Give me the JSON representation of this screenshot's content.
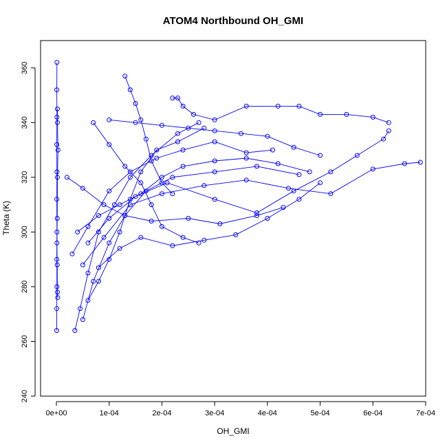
{
  "chart_data": {
    "type": "line",
    "title": "ATOM4 Northbound OH_GMI",
    "xlabel": "OH_GMI",
    "ylabel": "Theta (K)",
    "xlim": [
      -3e-05,
      0.0007
    ],
    "ylim": [
      240,
      370
    ],
    "x_ticks": [
      {
        "value": 0,
        "label": "0e+00"
      },
      {
        "value": 0.0001,
        "label": "1e-04"
      },
      {
        "value": 0.0002,
        "label": "2e-04"
      },
      {
        "value": 0.0003,
        "label": "3e-04"
      },
      {
        "value": 0.0004,
        "label": "4e-04"
      },
      {
        "value": 0.0005,
        "label": "5e-04"
      },
      {
        "value": 0.0006,
        "label": "6e-04"
      },
      {
        "value": 0.0007,
        "label": "7e-04"
      }
    ],
    "y_ticks": [
      {
        "value": 240,
        "label": "240"
      },
      {
        "value": 260,
        "label": "260"
      },
      {
        "value": 280,
        "label": "280"
      },
      {
        "value": 300,
        "label": "300"
      },
      {
        "value": 320,
        "label": "320"
      },
      {
        "value": 340,
        "label": "340"
      },
      {
        "value": 360,
        "label": "360"
      }
    ],
    "grid": false,
    "color": "#0000ff",
    "marker": "open-circle",
    "series": [
      {
        "points": [
          [
            5e-07,
            264
          ],
          [
            8e-07,
            272
          ],
          [
            1e-06,
            280
          ],
          [
            8e-07,
            290
          ],
          [
            1e-06,
            300
          ],
          [
            8e-07,
            312
          ],
          [
            1e-06,
            322
          ],
          [
            8e-07,
            332
          ],
          [
            1e-06,
            342
          ],
          [
            8e-07,
            352
          ],
          [
            1e-06,
            362
          ]
        ]
      },
      {
        "points": [
          [
            2e-06,
            345
          ],
          [
            2e-06,
            340
          ],
          [
            3e-06,
            330
          ],
          [
            2e-06,
            320
          ],
          [
            1.5e-06,
            305
          ],
          [
            1e-06,
            296
          ],
          [
            1.5e-06,
            288
          ],
          [
            2e-06,
            278
          ],
          [
            2.5e-06,
            276
          ]
        ]
      },
      {
        "points": [
          [
            3.5e-05,
            264
          ],
          [
            4.5e-05,
            272
          ],
          [
            6e-05,
            285
          ],
          [
            8e-05,
            300
          ],
          [
            0.00011,
            310
          ],
          [
            0.00014,
            320
          ],
          [
            0.00018,
            328
          ],
          [
            0.00023,
            336
          ],
          [
            0.00027,
            340
          ]
        ]
      },
      {
        "points": [
          [
            5e-05,
            268
          ],
          [
            7e-05,
            282
          ],
          [
            0.0001,
            296
          ],
          [
            0.00013,
            306
          ],
          [
            0.00017,
            315
          ],
          [
            0.00022,
            320
          ],
          [
            0.0003,
            322
          ],
          [
            0.00038,
            324
          ],
          [
            0.00046,
            321
          ]
        ]
      },
      {
        "points": [
          [
            5e-05,
            288
          ],
          [
            9e-05,
            298
          ],
          [
            0.00014,
            310
          ],
          [
            0.0002,
            314
          ],
          [
            0.00028,
            317
          ],
          [
            0.00036,
            319
          ],
          [
            0.00044,
            316
          ],
          [
            0.00052,
            314
          ],
          [
            0.0006,
            323
          ],
          [
            0.00066,
            325
          ],
          [
            0.00069,
            325.5
          ]
        ]
      },
      {
        "points": [
          [
            6e-05,
            296
          ],
          [
            0.0001,
            305
          ],
          [
            0.00015,
            313
          ],
          [
            0.00021,
            318
          ],
          [
            0.0003,
            312
          ],
          [
            0.00038,
            307
          ],
          [
            0.00045,
            315
          ],
          [
            0.00052,
            322
          ],
          [
            0.00057,
            328
          ],
          [
            0.00062,
            334
          ],
          [
            0.00063,
            337
          ]
        ]
      },
      {
        "points": [
          [
            0.0001,
            341
          ],
          [
            0.00015,
            340
          ],
          [
            0.0002,
            339
          ],
          [
            0.00025,
            338
          ],
          [
            0.0003,
            337
          ],
          [
            0.00035,
            336
          ],
          [
            0.0004,
            335
          ],
          [
            0.00045,
            331
          ],
          [
            0.0005,
            328
          ]
        ]
      },
      {
        "points": [
          [
            0.00013,
            357
          ],
          [
            0.00014,
            352
          ],
          [
            0.00015,
            347
          ],
          [
            0.00016,
            341
          ],
          [
            0.00017,
            334
          ],
          [
            0.00018,
            326
          ],
          [
            0.0002,
            318
          ],
          [
            0.00022,
            314
          ]
        ]
      },
      {
        "points": [
          [
            0.00022,
            349
          ],
          [
            0.00023,
            349
          ],
          [
            0.00024,
            346
          ],
          [
            0.00026,
            343
          ],
          [
            0.0003,
            341
          ],
          [
            0.00036,
            346
          ],
          [
            0.00042,
            346
          ],
          [
            0.00046,
            346
          ],
          [
            0.0005,
            343
          ],
          [
            0.00055,
            343
          ],
          [
            0.0006,
            342
          ],
          [
            0.00063,
            340
          ]
        ]
      },
      {
        "points": [
          [
            8e-05,
            287
          ],
          [
            0.00012,
            294
          ],
          [
            0.00016,
            298
          ],
          [
            0.00022,
            295
          ],
          [
            0.00028,
            297
          ],
          [
            0.00034,
            299
          ],
          [
            0.0004,
            305
          ],
          [
            0.00046,
            312
          ],
          [
            0.0005,
            318
          ]
        ]
      },
      {
        "points": [
          [
            4e-05,
            300
          ],
          [
            8e-05,
            306
          ],
          [
            0.00012,
            310
          ],
          [
            0.00016,
            314
          ],
          [
            0.0002,
            320
          ],
          [
            0.00024,
            324
          ],
          [
            0.0003,
            326
          ],
          [
            0.00036,
            327
          ],
          [
            0.00042,
            325
          ],
          [
            0.00048,
            322
          ]
        ]
      },
      {
        "points": [
          [
            6e-05,
            275
          ],
          [
            8e-05,
            282
          ],
          [
            0.0001,
            290
          ],
          [
            0.00012,
            300
          ],
          [
            0.00014,
            312
          ],
          [
            0.00016,
            322
          ],
          [
            0.00019,
            330
          ],
          [
            0.00023,
            333
          ],
          [
            0.00028,
            338
          ]
        ]
      },
      {
        "points": [
          [
            3e-05,
            292
          ],
          [
            6e-05,
            302
          ],
          [
            0.0001,
            315
          ],
          [
            0.00014,
            322
          ],
          [
            0.00019,
            327
          ],
          [
            0.00024,
            330
          ],
          [
            0.0003,
            333
          ],
          [
            0.00036,
            329
          ],
          [
            0.00041,
            330
          ]
        ]
      },
      {
        "points": [
          [
            7e-05,
            340
          ],
          [
            0.0001,
            332
          ],
          [
            0.00013,
            324
          ],
          [
            0.00016,
            318
          ],
          [
            0.00018,
            310
          ],
          [
            0.0002,
            302
          ],
          [
            0.00024,
            298
          ],
          [
            0.00027,
            296
          ]
        ]
      },
      {
        "points": [
          [
            2e-05,
            320
          ],
          [
            5e-05,
            316
          ],
          [
            9e-05,
            310
          ],
          [
            0.00013,
            306
          ],
          [
            0.00018,
            304
          ],
          [
            0.00025,
            305
          ],
          [
            0.00031,
            303
          ],
          [
            0.00038,
            306
          ],
          [
            0.00043,
            309
          ]
        ]
      }
    ]
  }
}
